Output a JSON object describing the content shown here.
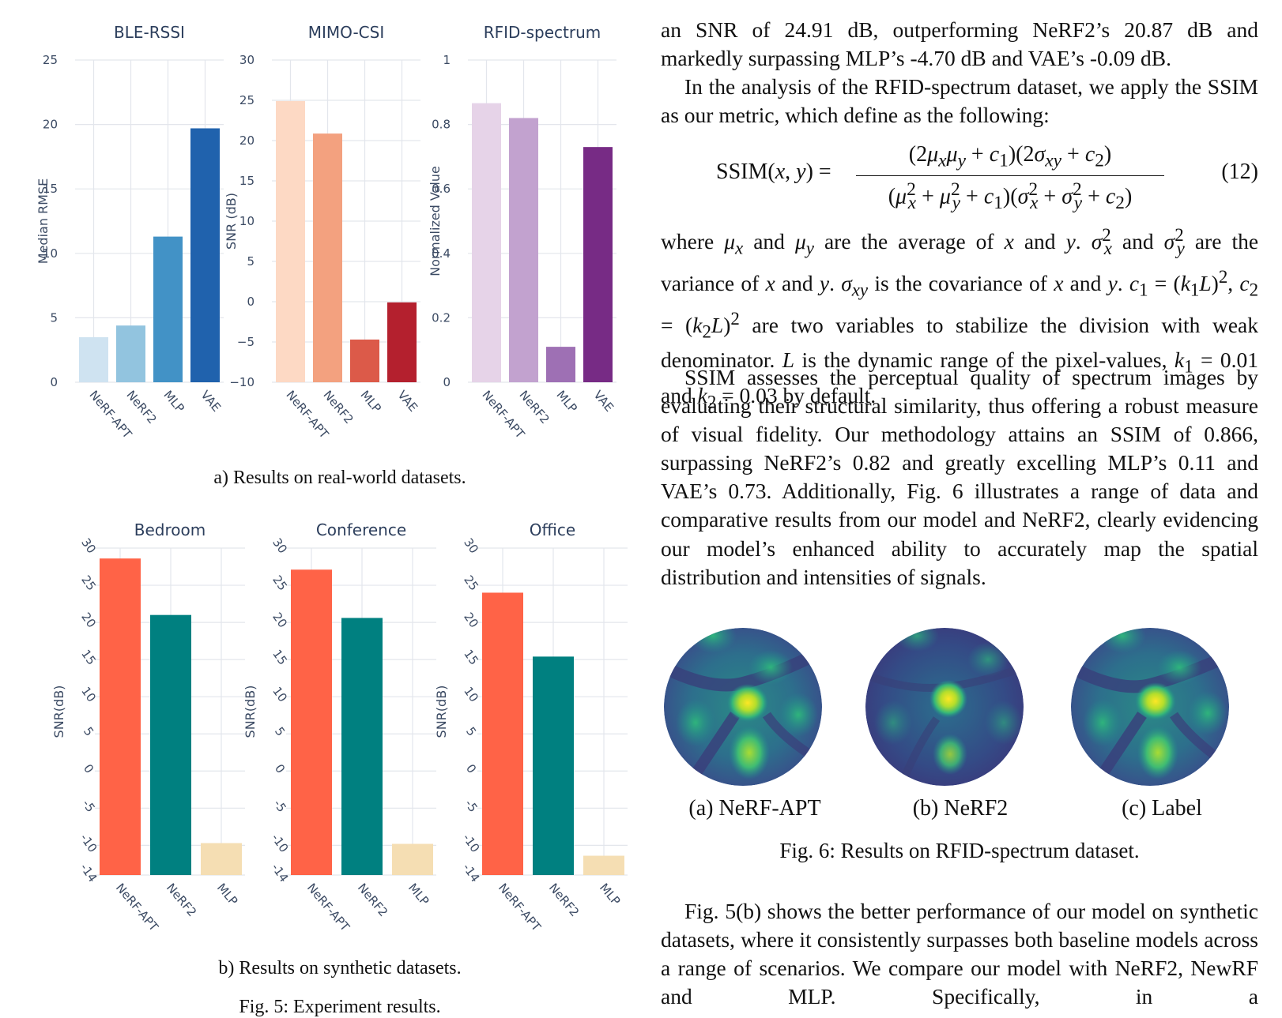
{
  "figure5": {
    "caption_a": "a) Results on real-world datasets.",
    "caption_b": "b) Results on synthetic datasets.",
    "caption_main": "Fig. 5: Experiment results.",
    "charts": [
      {
        "type": "bar",
        "title": "BLE-RSSI",
        "ylabel": "Median RMSE",
        "categories": [
          "NeRF-APT",
          "NeRF2",
          "MLP",
          "VAE"
        ],
        "values": [
          3.5,
          4.4,
          11.3,
          19.7
        ],
        "ylim": [
          0,
          25
        ],
        "yticks": [
          "0",
          "5",
          "10",
          "15",
          "20",
          "25"
        ],
        "ytick_values": [
          0,
          5,
          10,
          15,
          20,
          25
        ],
        "colors": [
          "#cfe3f1",
          "#92c4df",
          "#4292c6",
          "#2062ad"
        ]
      },
      {
        "type": "bar",
        "title": "MIMO-CSI",
        "ylabel": "SNR (dB)",
        "categories": [
          "NeRF-APT",
          "NeRF2",
          "MLP",
          "VAE"
        ],
        "values": [
          24.91,
          20.87,
          -4.7,
          -0.09
        ],
        "ylim": [
          -10,
          30
        ],
        "yticks": [
          "−10",
          "−5",
          "0",
          "5",
          "10",
          "15",
          "20",
          "25",
          "30"
        ],
        "ytick_values": [
          -10,
          -5,
          0,
          5,
          10,
          15,
          20,
          25,
          30
        ],
        "colors": [
          "#fdd9c4",
          "#f3a17f",
          "#dc5a49",
          "#b4202e"
        ]
      },
      {
        "type": "bar",
        "title": "RFID-spectrum",
        "ylabel": "Normalized Value",
        "categories": [
          "NeRF-APT",
          "NeRF2",
          "MLP",
          "VAE"
        ],
        "values": [
          0.866,
          0.82,
          0.11,
          0.73
        ],
        "ylim": [
          0,
          1
        ],
        "yticks": [
          "0",
          "0.2",
          "0.4",
          "0.6",
          "0.8",
          "1"
        ],
        "ytick_values": [
          0,
          0.2,
          0.4,
          0.6,
          0.8,
          1
        ],
        "colors": [
          "#e6d3e8",
          "#c2a2cf",
          "#9e70b4",
          "#772b85"
        ]
      },
      {
        "type": "bar",
        "title": "Bedroom",
        "ylabel": "SNR(dB)",
        "categories": [
          "NeRF-APT",
          "NeRF2",
          "MLP"
        ],
        "values": [
          28.6,
          21.0,
          -9.7
        ],
        "ylim": [
          -14,
          30
        ],
        "yticks": [
          "-14",
          "-10",
          "-5",
          "0",
          "5",
          "10",
          "15",
          "20",
          "25",
          "30"
        ],
        "ytick_values": [
          -14,
          -10,
          -5,
          0,
          5,
          10,
          15,
          20,
          25,
          30
        ],
        "colors": [
          "#ff6347",
          "#008080",
          "#f5deb3"
        ]
      },
      {
        "type": "bar",
        "title": "Conference",
        "ylabel": "SNR(dB)",
        "categories": [
          "NeRF-APT",
          "NeRF2",
          "MLP"
        ],
        "values": [
          27.1,
          20.6,
          -9.8
        ],
        "ylim": [
          -14,
          30
        ],
        "yticks": [
          "-14",
          "-10",
          "-5",
          "0",
          "5",
          "10",
          "15",
          "20",
          "25",
          "30"
        ],
        "ytick_values": [
          -14,
          -10,
          -5,
          0,
          5,
          10,
          15,
          20,
          25,
          30
        ],
        "colors": [
          "#ff6347",
          "#008080",
          "#f5deb3"
        ]
      },
      {
        "type": "bar",
        "title": "Office",
        "ylabel": "SNR(dB)",
        "categories": [
          "NeRF-APT",
          "NeRF2",
          "MLP"
        ],
        "values": [
          24.0,
          15.4,
          -11.4
        ],
        "ylim": [
          -14,
          30
        ],
        "yticks": [
          "-14",
          "-10",
          "-5",
          "0",
          "5",
          "10",
          "15",
          "20",
          "25",
          "30"
        ],
        "ytick_values": [
          -14,
          -10,
          -5,
          0,
          5,
          10,
          15,
          20,
          25,
          30
        ],
        "colors": [
          "#ff6347",
          "#008080",
          "#f5deb3"
        ]
      }
    ]
  },
  "text": {
    "para1": "an SNR of 24.91 dB, outperforming NeRF2’s 20.87 dB and markedly surpassing MLP’s -4.70 dB and VAE’s -0.09 dB.",
    "para2": "In the analysis of the RFID-spectrum dataset, we apply the SSIM as our metric, which define as the following:",
    "eq_number": "(12)",
    "para3_a": "where",
    "para3_b": "are the average of",
    "para3_c": "the variance of",
    "para3_d": "is the covariance of",
    "para3_e": "are two variables to stabilize the division with weak denominator.",
    "para3_f": "is the dynamic range of the pixel-values,",
    "para3_g": "by default.",
    "para4": "SSIM assesses the perceptual quality of spectrum images by evaluating their structural similarity, thus offering a robust measure of visual fidelity. Our methodology attains an SSIM of 0.866, surpassing NeRF2’s 0.82 and greatly excelling MLP’s 0.11 and VAE’s 0.73. Additionally, Fig. 6 illustrates a range of data and comparative results from our model and NeRF2, clearly evidencing our model’s enhanced ability to accurately map the spatial distribution and intensities of signals.",
    "para5": "Fig. 5(b) shows the better performance of our model on synthetic datasets, where it consistently surpasses both baseline models across a range of scenarios. We compare our model with NeRF2, NewRF and MLP. Specifically, in a"
  },
  "figure6": {
    "labels": [
      "(a) NeRF-APT",
      "(b) NeRF2",
      "(c) Label"
    ],
    "caption": "Fig. 6: Results on RFID-spectrum dataset."
  }
}
